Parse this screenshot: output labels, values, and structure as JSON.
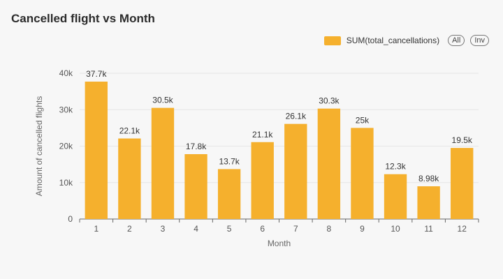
{
  "title": "Cancelled flight vs Month",
  "legend": {
    "series_label": "SUM(total_cancellations)",
    "all_button": "All",
    "inv_button": "Inv"
  },
  "colors": {
    "bar": "#F5B02D",
    "grid": "#e6e6e6",
    "axis": "#666666"
  },
  "chart_data": {
    "type": "bar",
    "title": "Cancelled flight vs Month",
    "xlabel": "Month",
    "ylabel": "Amount of cancelled flights",
    "categories": [
      "1",
      "2",
      "3",
      "4",
      "5",
      "6",
      "7",
      "8",
      "9",
      "10",
      "11",
      "12"
    ],
    "series": [
      {
        "name": "SUM(total_cancellations)",
        "values": [
          37700,
          22100,
          30500,
          17800,
          13700,
          21100,
          26100,
          30300,
          25000,
          12300,
          8980,
          19500
        ],
        "labels": [
          "37.7k",
          "22.1k",
          "30.5k",
          "17.8k",
          "13.7k",
          "21.1k",
          "26.1k",
          "30.3k",
          "25k",
          "12.3k",
          "8.98k",
          "19.5k"
        ]
      }
    ],
    "ylim": [
      0,
      40000
    ],
    "yticks": [
      0,
      10000,
      20000,
      30000,
      40000
    ],
    "ytick_labels": [
      "0",
      "10k",
      "20k",
      "30k",
      "40k"
    ],
    "grid": true,
    "legend_position": "top-right"
  }
}
